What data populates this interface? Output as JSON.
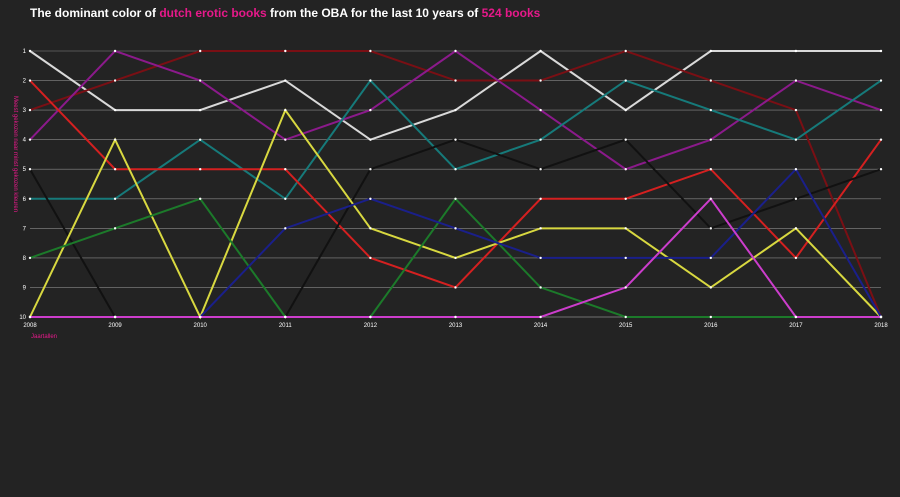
{
  "title": {
    "part1": "The dominant color of ",
    "highlight1": "dutch erotic books",
    "part2": " from the OBA for the last 10 years of ",
    "highlight2": "524 books"
  },
  "chart_data": {
    "type": "line",
    "ylabel": "Meest gekozen naar minst gekozen kleuren",
    "xlabel": "Jaartallen",
    "x": [
      2008,
      2009,
      2010,
      2011,
      2012,
      2013,
      2014,
      2015,
      2016,
      2017,
      2018
    ],
    "yticks": [
      1,
      2,
      3,
      4,
      5,
      6,
      7,
      8,
      9,
      10
    ],
    "ylim": [
      1,
      10
    ],
    "y_reversed": true,
    "grid": true,
    "series": [
      {
        "color": "#d9d9d9",
        "values": [
          1,
          3,
          3,
          2,
          4,
          3,
          1,
          3,
          1,
          1,
          1
        ]
      },
      {
        "color": "#7a0f14",
        "values": [
          3,
          2,
          1,
          1,
          1,
          2,
          2,
          1,
          2,
          3,
          10
        ]
      },
      {
        "color": "#8b1a8b",
        "values": [
          4,
          1,
          2,
          4,
          3,
          1,
          3,
          5,
          4,
          2,
          3
        ]
      },
      {
        "color": "#167a7a",
        "values": [
          6,
          6,
          4,
          6,
          2,
          5,
          4,
          2,
          3,
          4,
          2
        ]
      },
      {
        "color": "#d42020",
        "values": [
          2,
          5,
          5,
          5,
          8,
          9,
          6,
          6,
          5,
          8,
          4
        ]
      },
      {
        "color": "#111111",
        "values": [
          5,
          10,
          10,
          10,
          5,
          4,
          5,
          4,
          7,
          6,
          5
        ]
      },
      {
        "color": "#d8d840",
        "values": [
          10,
          4,
          10,
          3,
          7,
          8,
          7,
          7,
          9,
          7,
          10
        ]
      },
      {
        "color": "#1c7a2a",
        "values": [
          8,
          7,
          6,
          10,
          10,
          6,
          9,
          10,
          10,
          10,
          10
        ]
      },
      {
        "color": "#1a1f8a",
        "values": [
          10,
          10,
          10,
          7,
          6,
          7,
          8,
          8,
          8,
          5,
          10
        ]
      },
      {
        "color": "#cc3dcc",
        "values": [
          10,
          10,
          10,
          10,
          10,
          10,
          10,
          9,
          6,
          10,
          10
        ]
      }
    ]
  }
}
